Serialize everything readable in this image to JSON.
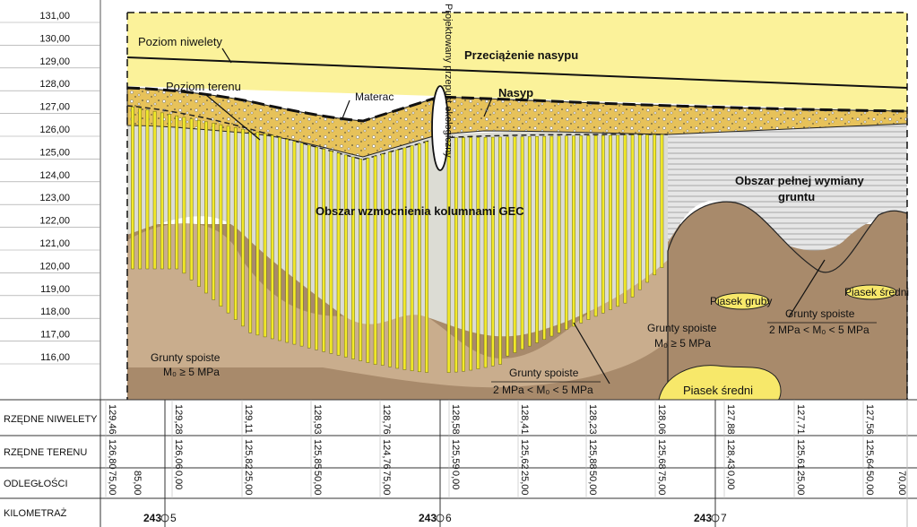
{
  "elevation_scale": {
    "labels": [
      "131,00",
      "130,00",
      "129,00",
      "128,00",
      "127,00",
      "126,00",
      "125,00",
      "124,00",
      "123,00",
      "122,00",
      "121,00",
      "120,00",
      "119,00",
      "118,00",
      "117,00",
      "116,00"
    ]
  },
  "labels": {
    "niweleta": "Poziom niwelety",
    "przeciazenie": "Przeciążenie nasypu",
    "teren": "Poziom terenu",
    "materac": "Materac",
    "nasyp": "Nasyp",
    "przepust": "Projektowany przepust ekologiczny",
    "gec": "Obszar wzmocnienia kolumnami GEC",
    "wymiana_1": "Obszar pełnej wymiany",
    "wymiana_2": "gruntu",
    "piasek_gruby": "Piasek gruby",
    "piasek_sredni_small": "Piasek średni",
    "piasek_sredni_big": "Piasek średni",
    "gs_left_1": "Grunty spoiste",
    "gs_left_2": "M₀ ≥ 5 MPa",
    "gs_mid_1": "Grunty spoiste",
    "gs_mid_2": "2 MPa < M₀ < 5 MPa",
    "gs_right_1": "Grunty spoiste",
    "gs_right_2": "M₀ ≥ 5 MPa",
    "gs_far_1": "Grunty spoiste",
    "gs_far_2": "2 MPa < M₀ < 5 MPa"
  },
  "table": {
    "row_labels": [
      "RZĘDNE NIWELETY",
      "RZĘDNE TERENU",
      "ODLEGŁOŚCI",
      "KILOMETRAŻ"
    ],
    "niwelety": [
      "129,46",
      "129,28",
      "129,11",
      "128,93",
      "128,76",
      "128,58",
      "128,41",
      "128,23",
      "128,06",
      "127,88",
      "127,71",
      "127,56"
    ],
    "terenu": [
      "126,80",
      "126,06",
      "125,82",
      "125,85",
      "124,76",
      "125,59",
      "125,62",
      "125,88",
      "125,68",
      "128,43",
      "125,61",
      "125,64"
    ],
    "odleglosci": [
      "75,00",
      "85,00",
      "0,00",
      "25,00",
      "50,00",
      "75,00",
      "0,00",
      "25,00",
      "50,00",
      "75,00",
      "0,00",
      "25,00",
      "50,00",
      "70,00"
    ],
    "kilometraz": [
      {
        "km": "243",
        "hm": "5"
      },
      {
        "km": "243",
        "hm": "6"
      },
      {
        "km": "243",
        "hm": "7"
      }
    ]
  }
}
